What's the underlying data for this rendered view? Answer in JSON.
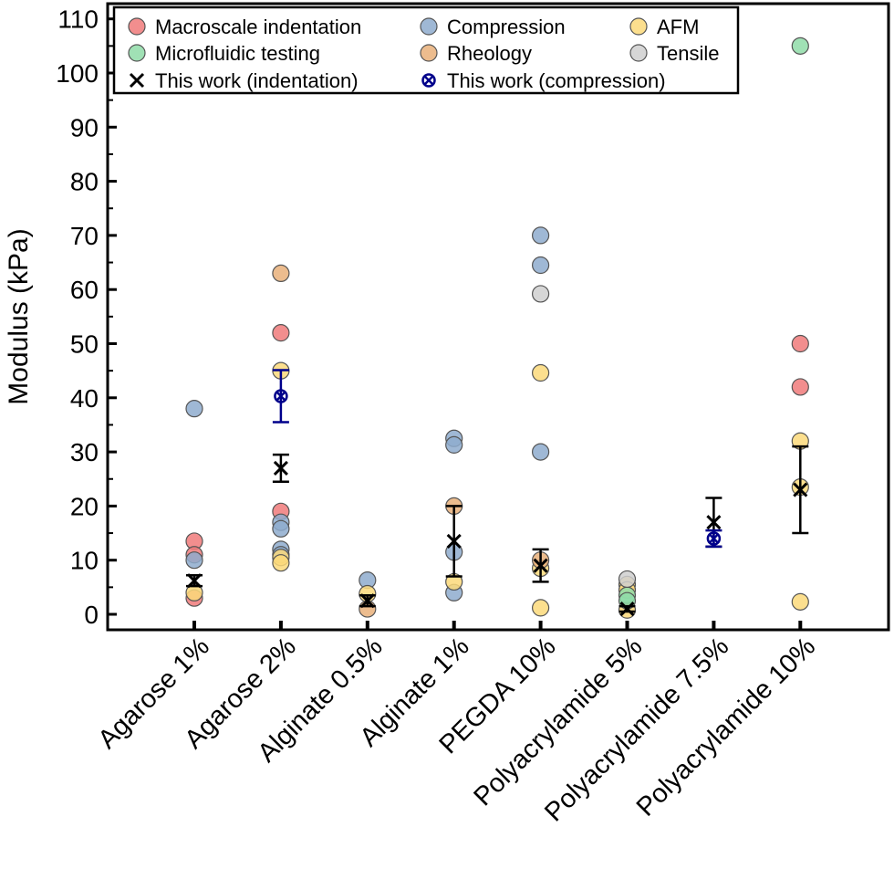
{
  "chart_data": {
    "type": "scatter",
    "ylabel": "Modulus (kPa)",
    "xlabel": "",
    "ylim": [
      -3,
      112
    ],
    "yticks": [
      0,
      10,
      20,
      30,
      40,
      50,
      60,
      70,
      80,
      90,
      100,
      110
    ],
    "grid": false,
    "legend_position": "top",
    "categories": [
      "Agarose 1%",
      "Agarose 2%",
      "Alginate 0.5%",
      "Alginate 1%",
      "PEGDA 10%",
      "Polyacrylamide 5%",
      "Polyacrylamide 7.5%",
      "Polyacrylamide 10%"
    ],
    "series": [
      {
        "name": "Macroscale indentation",
        "color": "#f07a7a",
        "marker": "circle",
        "points": [
          [
            0,
            13.5
          ],
          [
            0,
            11
          ],
          [
            0,
            3
          ],
          [
            1,
            52
          ],
          [
            1,
            19
          ],
          [
            7,
            50
          ],
          [
            7,
            42
          ]
        ]
      },
      {
        "name": "Compression",
        "color": "#8eacce",
        "marker": "circle",
        "points": [
          [
            0,
            38
          ],
          [
            0,
            10
          ],
          [
            1,
            17
          ],
          [
            1,
            15.8
          ],
          [
            1,
            12
          ],
          [
            1,
            11
          ],
          [
            2,
            6.3
          ],
          [
            3,
            32.5
          ],
          [
            3,
            31.3
          ],
          [
            3,
            11.5
          ],
          [
            3,
            4
          ],
          [
            4,
            70
          ],
          [
            4,
            64.5
          ],
          [
            4,
            30
          ]
        ]
      },
      {
        "name": "AFM",
        "color": "#fcd97a",
        "marker": "circle",
        "points": [
          [
            0,
            4
          ],
          [
            1,
            45
          ],
          [
            1,
            10.5
          ],
          [
            1,
            9.5
          ],
          [
            2,
            3.8
          ],
          [
            3,
            6
          ],
          [
            4,
            44.6
          ],
          [
            4,
            8.5
          ],
          [
            4,
            1.2
          ],
          [
            5,
            5.5
          ],
          [
            5,
            4.5
          ],
          [
            5,
            0.8
          ],
          [
            7,
            32
          ],
          [
            7,
            23.5
          ],
          [
            7,
            2.3
          ]
        ]
      },
      {
        "name": "Microfluidic testing",
        "color": "#8fdca8",
        "marker": "circle",
        "points": [
          [
            5,
            3.5
          ],
          [
            5,
            2.5
          ],
          [
            7,
            105
          ]
        ]
      },
      {
        "name": "Rheology",
        "color": "#e9b07a",
        "marker": "circle",
        "points": [
          [
            1,
            63
          ],
          [
            2,
            1
          ],
          [
            3,
            20
          ],
          [
            4,
            10
          ]
        ]
      },
      {
        "name": "Tensile",
        "color": "#cfcfcf",
        "marker": "circle",
        "points": [
          [
            4,
            59.2
          ],
          [
            5,
            6.5
          ]
        ]
      },
      {
        "name": "This work (indentation)",
        "color": "#000000",
        "marker": "x",
        "points": [
          [
            0,
            6.2,
            1
          ],
          [
            1,
            27,
            2.5
          ],
          [
            2,
            2.5,
            1
          ],
          [
            3,
            13.5,
            6.5
          ],
          [
            4,
            9,
            3
          ],
          [
            5,
            1,
            0.5
          ],
          [
            6,
            17,
            4.5
          ],
          [
            7,
            23,
            8
          ]
        ]
      },
      {
        "name": "This work (compression)",
        "color": "#00008b",
        "marker": "crossed-circle",
        "points": [
          [
            1,
            40.3,
            4.8
          ],
          [
            6,
            14,
            1.5
          ]
        ]
      }
    ]
  }
}
